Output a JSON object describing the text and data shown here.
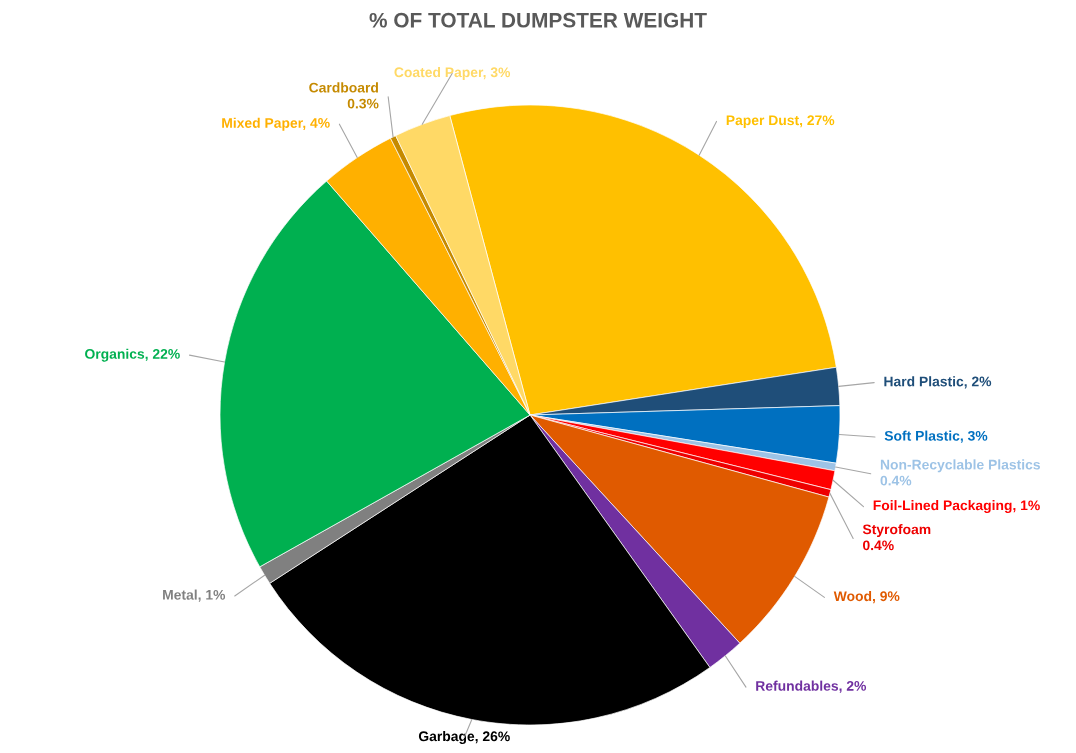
{
  "chart_data": {
    "type": "pie",
    "title": "% OF TOTAL DUMPSTER WEIGHT",
    "categories": [
      "Paper Dust",
      "Hard Plastic",
      "Soft Plastic",
      "Non-Recyclable Plastics",
      "Foil-Lined Packaging",
      "Styrofoam",
      "Wood",
      "Refundables",
      "Garbage",
      "Metal",
      "Organics",
      "Mixed Paper",
      "Cardboard",
      "Coated Paper"
    ],
    "values": [
      27,
      2,
      3,
      0.4,
      1,
      0.4,
      9,
      2,
      26,
      1,
      22,
      4,
      0.3,
      3
    ],
    "colors": [
      "#ffc000",
      "#1f4e79",
      "#0070c0",
      "#9dc3e6",
      "#ff0000",
      "#ee0000",
      "#e05a00",
      "#7030a0",
      "#000000",
      "#808080",
      "#00b050",
      "#ffb000",
      "#c58a00",
      "#ffd966"
    ],
    "value_labels": [
      "27%",
      "2%",
      "3%",
      "0.4%",
      "1%",
      "0.4%",
      "9%",
      "2%",
      "26%",
      "1%",
      "22%",
      "4%",
      "0.3%",
      "3%"
    ],
    "legend": false
  }
}
